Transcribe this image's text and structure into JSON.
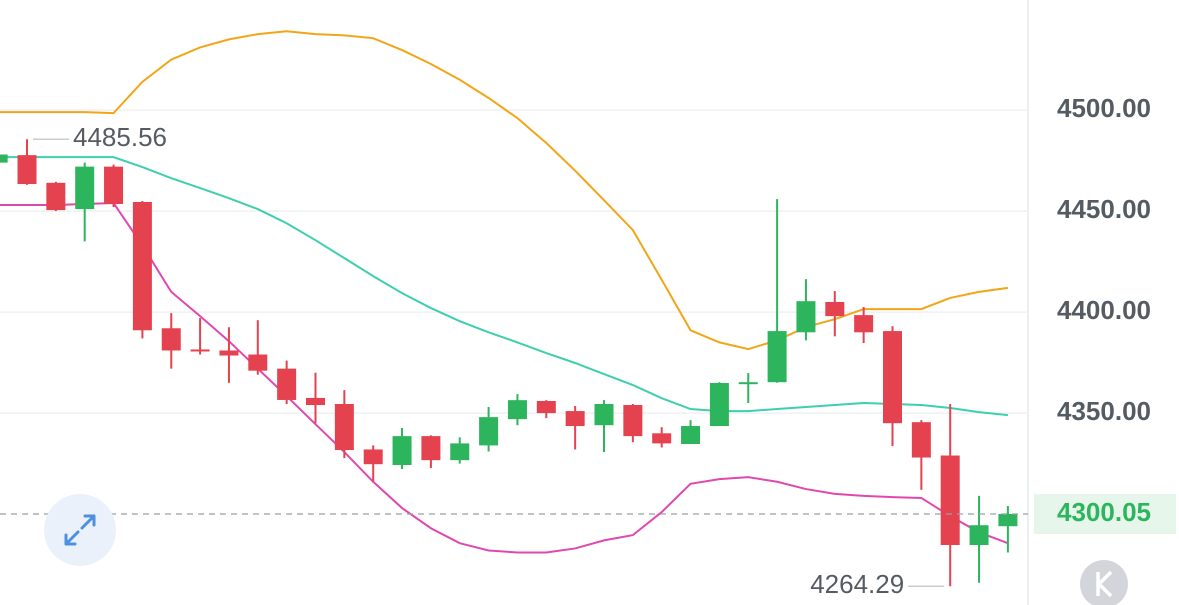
{
  "chart_data": {
    "type": "candlestick",
    "open": [
      4474,
      4477.7,
      4464,
      4451,
      4472,
      4454.5,
      4392,
      4381.5,
      4381,
      4379,
      4372,
      4357.5,
      4354.5,
      4332,
      4324.3,
      4338.6,
      4326.7,
      4334,
      4347,
      4356,
      4351,
      4344,
      4354,
      4340,
      4334.7,
      4343.6,
      4364.6,
      4365.3,
      4390,
      4405,
      4398.5,
      4390.6,
      4345.5,
      4329,
      4284.7,
      4294
    ],
    "high": [
      4478,
      4485.56,
      4464.5,
      4474,
      4473,
      4455,
      4399.5,
      4397,
      4392.5,
      4396,
      4376,
      4370,
      4361.4,
      4334,
      4342.6,
      4339,
      4338,
      4353,
      4359.4,
      4356.4,
      4353.5,
      4356.4,
      4354.5,
      4343,
      4346.5,
      4365.3,
      4369.8,
      4455.9,
      4416.3,
      4410.4,
      4402.5,
      4393,
      4346.5,
      4354.5,
      4309,
      4304
    ],
    "low": [
      4473,
      4463,
      4450,
      4435,
      4452,
      4387,
      4372,
      4379,
      4365,
      4369,
      4354.5,
      4345,
      4327.7,
      4316,
      4322.3,
      4322.8,
      4325,
      4331,
      4344,
      4347.5,
      4332,
      4330.7,
      4335.6,
      4333,
      4334.7,
      4343.6,
      4355,
      4365,
      4386,
      4388,
      4384.7,
      4333.7,
      4312,
      4264.29,
      4266,
      4281
    ],
    "close": [
      4478,
      4463.4,
      4450.5,
      4472,
      4453.5,
      4391,
      4381,
      4380.5,
      4378.5,
      4371,
      4356.5,
      4354,
      4331.7,
      4324.7,
      4338.6,
      4326.7,
      4335,
      4348,
      4356.4,
      4350,
      4343.6,
      4354.5,
      4338.6,
      4335,
      4343.6,
      4364.9,
      4365.3,
      4390.6,
      4405.4,
      4398,
      4390,
      4345,
      4328,
      4284.7,
      4294.5,
      4300.05
    ],
    "up_color": "#2db55d",
    "down_color": "#e5424f",
    "overlays": [
      {
        "color": "#f2a516",
        "values": [
          4499,
          4499,
          4499,
          4499,
          4498.5,
          4514,
          4525,
          4531,
          4535,
          4537.6,
          4539,
          4537.6,
          4537,
          4535.6,
          4529.7,
          4522.8,
          4515,
          4506,
          4496,
          4483.7,
          4470,
          4455.4,
          4440.6,
          4416,
          4391,
          4385,
          4381.7,
          4386,
          4392.6,
          4396.5,
          4401.5,
          4401.5,
          4401.5,
          4407,
          4410,
          4412
        ]
      },
      {
        "color": "#3dcfae",
        "values": [
          4476.7,
          4476.7,
          4476.7,
          4476.7,
          4476.7,
          4471.8,
          4466.3,
          4461.4,
          4456.4,
          4451,
          4444,
          4435.6,
          4426.7,
          4417.8,
          4409.4,
          4402,
          4395.5,
          4390,
          4385,
          4379.7,
          4374.8,
          4369.3,
          4363.9,
          4357.4,
          4352,
          4351,
          4351,
          4352,
          4353,
          4354,
          4355,
          4354.5,
          4354,
          4352.5,
          4350.5,
          4349
        ]
      },
      {
        "color": "#e048b0",
        "values": [
          4453,
          4453,
          4453,
          4453.5,
          4454,
          4433,
          4410,
          4398,
          4385.6,
          4372,
          4358.4,
          4344.5,
          4330.7,
          4316,
          4303,
          4293,
          4285.6,
          4282,
          4281,
          4281,
          4283,
          4287,
          4289.6,
          4301,
          4315,
          4317.3,
          4318.3,
          4316,
          4312.4,
          4310,
          4309,
          4308.4,
          4308,
          4299,
          4291,
          4285.6
        ]
      }
    ],
    "ylim": [
      4255,
      4554.5
    ],
    "yticks": [
      {
        "value": 4350,
        "label": "4350.00"
      },
      {
        "value": 4400,
        "label": "4400.00"
      },
      {
        "value": 4450,
        "label": "4450.00"
      },
      {
        "value": 4500,
        "label": "4500.00"
      }
    ],
    "grid": true
  }
}
